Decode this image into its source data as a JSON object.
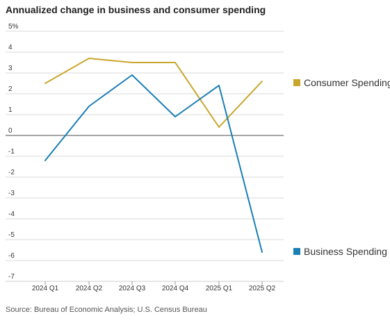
{
  "colors": {
    "consumer": "#c9a62b",
    "business": "#1a7fb5",
    "grid": "#d9d9d9",
    "zero_line": "#888888"
  },
  "chart_data": {
    "type": "line",
    "title": "Annualized change in business and consumer spending",
    "source": "Source: Bureau of Economic Analysis; U.S. Census Bureau",
    "categories": [
      "2024 Q1",
      "2024 Q2",
      "2024 Q3",
      "2024 Q4",
      "2025 Q1",
      "2025 Q2"
    ],
    "ylim": [
      -7,
      5
    ],
    "yticks": [
      5,
      4,
      3,
      2,
      1,
      0,
      -1,
      -2,
      -3,
      -4,
      -5,
      -6,
      -7
    ],
    "ytick_labels": [
      "5%",
      "4",
      "3",
      "2",
      "1",
      "0",
      "-1",
      "-2",
      "-3",
      "-4",
      "-5",
      "-6",
      "-7"
    ],
    "grid": true,
    "legend_placement": "right",
    "series": [
      {
        "name": "Consumer Spending",
        "color": "#c9a62b",
        "values": [
          2.5,
          3.7,
          3.5,
          3.5,
          0.4,
          2.6
        ]
      },
      {
        "name": "Business Spending",
        "color": "#1a7fb5",
        "values": [
          -1.2,
          1.4,
          2.9,
          0.9,
          2.4,
          -5.6
        ]
      }
    ]
  }
}
